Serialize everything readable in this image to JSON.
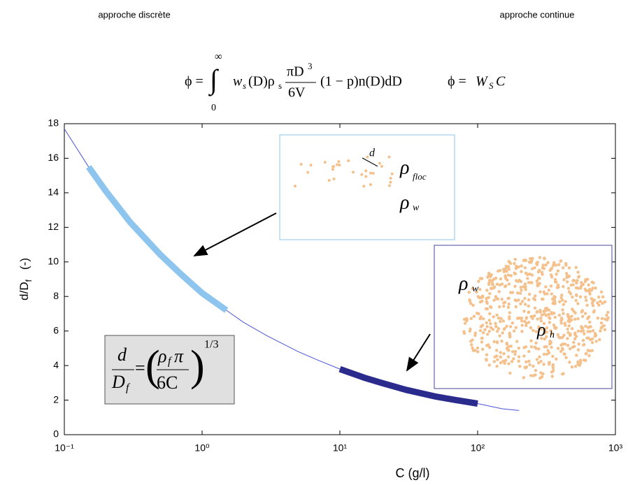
{
  "header": {
    "left": "approche discrète",
    "right": "approche continue"
  },
  "formulas": {
    "discrete": [
      "ϕ =",
      "∫",
      "∞",
      "0",
      "w",
      "s",
      "(D)ρ",
      "s",
      "πD",
      "3",
      "6V",
      "(1 − p)n(D)dD"
    ],
    "continuous": [
      "ϕ =",
      "W",
      "S",
      "C"
    ]
  },
  "chart_data": {
    "type": "line",
    "xlabel": "C  (g/l)",
    "ylabel": [
      "d/D",
      "f",
      "(-)"
    ],
    "log_x": true,
    "grid": false,
    "x": [
      0.1,
      0.15,
      0.2,
      0.3,
      0.5,
      0.7,
      1,
      1.5,
      2,
      3,
      5,
      7,
      10,
      15,
      20,
      30,
      50,
      70,
      100,
      150,
      200
    ],
    "series": [
      {
        "color": "#4a55d8",
        "width": 1,
        "values": [
          17.7,
          15.5,
          14.1,
          12.3,
          10.4,
          9.3,
          8.2,
          7.2,
          6.5,
          5.7,
          4.8,
          4.3,
          3.8,
          3.3,
          3.0,
          2.6,
          2.2,
          2.0,
          1.8,
          1.5,
          1.4
        ]
      },
      {
        "color": "#8ec5ee",
        "width": 9,
        "values": [
          null,
          15.5,
          14.1,
          12.3,
          10.4,
          9.3,
          8.2,
          7.2,
          null,
          null,
          null,
          null,
          null,
          null,
          null,
          null,
          null,
          null,
          null,
          null,
          null
        ]
      },
      {
        "color": "#2b2b8e",
        "width": 9,
        "values": [
          null,
          null,
          null,
          null,
          null,
          null,
          null,
          null,
          null,
          null,
          null,
          null,
          3.8,
          3.3,
          3.0,
          2.6,
          2.2,
          2.0,
          1.8,
          null,
          null
        ]
      }
    ],
    "xlim": [
      0.1,
      1000
    ],
    "xticks": [
      {
        "value": 0.1,
        "label": "10⁻¹"
      },
      {
        "value": 1,
        "label": "10⁰"
      },
      {
        "value": 10,
        "label": "10¹"
      },
      {
        "value": 100,
        "label": "10²"
      },
      {
        "value": 1000,
        "label": "10³"
      }
    ],
    "ylim": [
      0,
      18
    ],
    "yticks": [
      0,
      2,
      4,
      6,
      8,
      10,
      12,
      14,
      16,
      18
    ],
    "insets": {
      "sparse": [
        "d",
        "ρ",
        "floc",
        "ρ",
        "w"
      ],
      "dense": [
        "ρ",
        "w",
        "ρ",
        "h"
      ],
      "formula": [
        "d",
        "D",
        "f",
        "=",
        "ρ",
        "f",
        "π",
        "6C",
        "1/3"
      ]
    }
  }
}
